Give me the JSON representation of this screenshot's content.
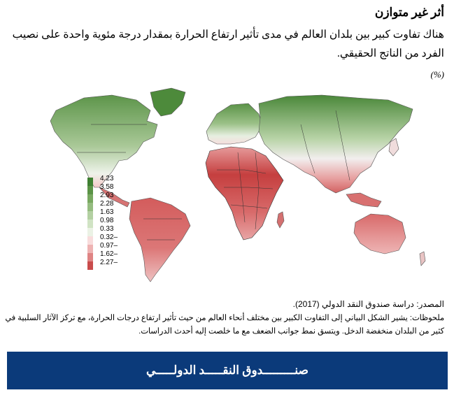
{
  "header": {
    "title": "أثر غير متوازن",
    "subtitle": "هناك تفاوت كبير بين بلدان العالم في مدى تأثير ارتفاع الحرارة بمقدار درجة مئوية واحدة على نصيب الفرد من الناتج الحقيقي.",
    "unit": "(%)"
  },
  "legend": {
    "labels": [
      "4.23",
      "3.58",
      "2.93",
      "2.28",
      "1.63",
      "0.98",
      "0.33",
      "0.32–",
      "0.97–",
      "1.62–",
      "2.27–"
    ],
    "colors": [
      "#3f7f32",
      "#5b9346",
      "#78a860",
      "#95bc80",
      "#b3d0a2",
      "#d0e3c4",
      "#ebf2e5",
      "#f8dcdc",
      "#eeb3b3",
      "#df8484",
      "#c94c4c"
    ]
  },
  "colors": {
    "ocean": "#ffffff",
    "green_strong": "#4e8a3c",
    "green_mid": "#8fb87a",
    "green_light": "#cfe1c2",
    "neutral": "#f2f2ee",
    "red_light": "#efb9b9",
    "red_mid": "#e08888",
    "red_strong": "#c94545",
    "footer_bg": "#0b3a7a"
  },
  "notes": {
    "source": "المصدر: دراسة صندوق النقد الدولي (2017).",
    "note": "ملحوظات: يشير الشكل البياني إلى التفاوت الكبير بين مختلف أنحاء العالم من حيث تأثير ارتفاع درجات الحرارة، مع تركز الآثار السلبية في كثير من البلدان منخفضة الدخل. ويتسق نمط جوانب الضعف مع ما خلصت إليه أحدث الدراسات."
  },
  "footer": {
    "label": "صنـــــــــدوق النقـــــد الدولـــــي"
  }
}
